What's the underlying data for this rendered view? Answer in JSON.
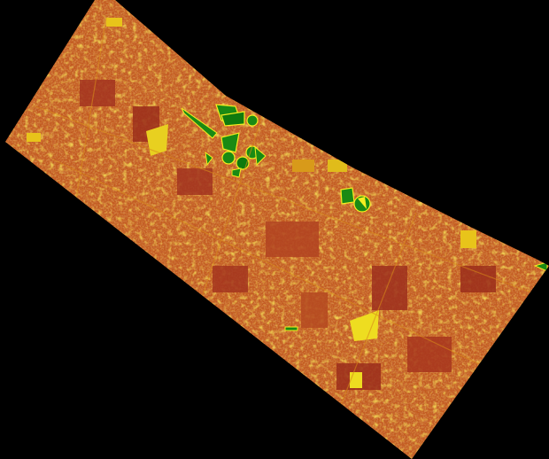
{
  "map": {
    "type": "satellite-vegetation-index-strip",
    "background_color": "#000000",
    "palette": {
      "low": "#a8321e",
      "mid_low": "#c25a1c",
      "mid": "#d8901a",
      "mid_high": "#e8c41a",
      "high": "#f5ee20",
      "vegetation": "#1a8a14",
      "vegetation_dark": "#0c6a0a"
    }
  }
}
